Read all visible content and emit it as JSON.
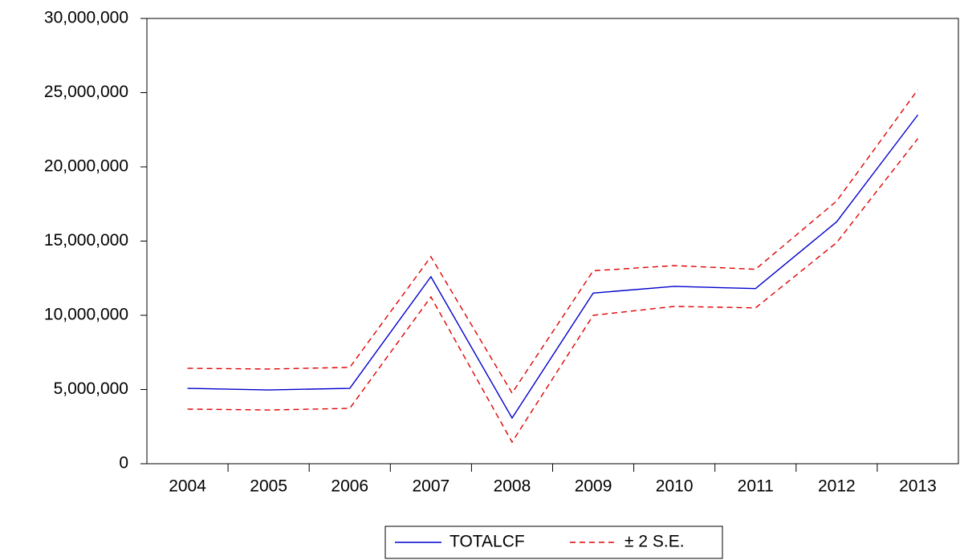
{
  "chart_data": {
    "type": "line",
    "categories": [
      "2004",
      "2005",
      "2006",
      "2007",
      "2008",
      "2009",
      "2010",
      "2011",
      "2012",
      "2013"
    ],
    "series": [
      {
        "name": "TOTALCF",
        "color": "#0000cc",
        "values": [
          5080000,
          4970000,
          5080000,
          12600000,
          3080000,
          11500000,
          11950000,
          11800000,
          16300000,
          23500000
        ]
      },
      {
        "name": "± 2 S.E.",
        "color": "#e00000",
        "dashed": true,
        "upper": [
          6430000,
          6380000,
          6490000,
          13950000,
          4760000,
          13000000,
          13350000,
          13100000,
          17700000,
          25200000
        ],
        "lower": [
          3680000,
          3620000,
          3730000,
          11240000,
          1460000,
          10000000,
          10600000,
          10500000,
          14900000,
          21900000
        ]
      }
    ],
    "ylim": [
      0,
      30000000
    ],
    "yticks": [
      0,
      {
        "value": 5000000,
        "label": "5,000,000"
      },
      {
        "value": 10000000,
        "label": "10,000,000"
      },
      {
        "value": 15000000,
        "label": "15,000,000"
      },
      {
        "value": 20000000,
        "label": "20,000,000"
      },
      {
        "value": 25000000,
        "label": "25,000,000"
      },
      {
        "value": 30000000,
        "label": "30,000,000"
      }
    ],
    "grid": false
  }
}
